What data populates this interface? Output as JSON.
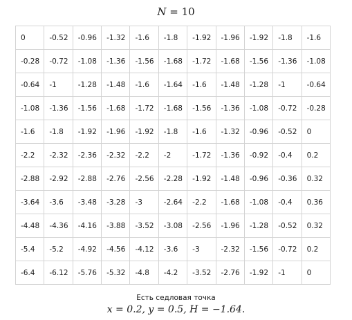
{
  "title": {
    "var": "N",
    "eq": "= 10"
  },
  "matrix": [
    [
      "0",
      "-0.52",
      "-0.96",
      "-1.32",
      "-1.6",
      "-1.8",
      "-1.92",
      "-1.96",
      "-1.92",
      "-1.8",
      "-1.6"
    ],
    [
      "-0.28",
      "-0.72",
      "-1.08",
      "-1.36",
      "-1.56",
      "-1.68",
      "-1.72",
      "-1.68",
      "-1.56",
      "-1.36",
      "-1.08"
    ],
    [
      "-0.64",
      "-1",
      "-1.28",
      "-1.48",
      "-1.6",
      "-1.64",
      "-1.6",
      "-1.48",
      "-1.28",
      "-1",
      "-0.64"
    ],
    [
      "-1.08",
      "-1.36",
      "-1.56",
      "-1.68",
      "-1.72",
      "-1.68",
      "-1.56",
      "-1.36",
      "-1.08",
      "-0.72",
      "-0.28"
    ],
    [
      "-1.6",
      "-1.8",
      "-1.92",
      "-1.96",
      "-1.92",
      "-1.8",
      "-1.6",
      "-1.32",
      "-0.96",
      "-0.52",
      "0"
    ],
    [
      "-2.2",
      "-2.32",
      "-2.36",
      "-2.32",
      "-2.2",
      "-2",
      "-1.72",
      "-1.36",
      "-0.92",
      "-0.4",
      "0.2"
    ],
    [
      "-2.88",
      "-2.92",
      "-2.88",
      "-2.76",
      "-2.56",
      "-2.28",
      "-1.92",
      "-1.48",
      "-0.96",
      "-0.36",
      "0.32"
    ],
    [
      "-3.64",
      "-3.6",
      "-3.48",
      "-3.28",
      "-3",
      "-2.64",
      "-2.2",
      "-1.68",
      "-1.08",
      "-0.4",
      "0.36"
    ],
    [
      "-4.48",
      "-4.36",
      "-4.16",
      "-3.88",
      "-3.52",
      "-3.08",
      "-2.56",
      "-1.96",
      "-1.28",
      "-0.52",
      "0.32"
    ],
    [
      "-5.4",
      "-5.2",
      "-4.92",
      "-4.56",
      "-4.12",
      "-3.6",
      "-3",
      "-2.32",
      "-1.56",
      "-0.72",
      "0.2"
    ],
    [
      "-6.4",
      "-6.12",
      "-5.76",
      "-5.32",
      "-4.8",
      "-4.2",
      "-3.52",
      "-2.76",
      "-1.92",
      "-1",
      "0"
    ]
  ],
  "caption": "Есть седловая точка",
  "formula": "x = 0.2, y = 0.5, H = −1.64."
}
